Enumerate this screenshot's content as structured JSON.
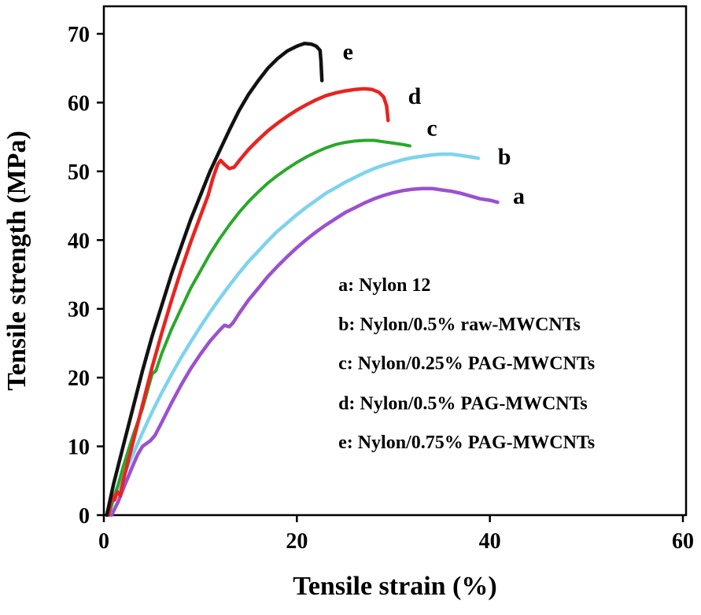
{
  "chart_data": {
    "type": "line",
    "title": "",
    "xlabel": "Tensile strain (%)",
    "ylabel": "Tensile strength (MPa)",
    "xlim": [
      0,
      60
    ],
    "ylim": [
      0,
      70
    ],
    "xticks": [
      0,
      20,
      40,
      60
    ],
    "yticks": [
      0,
      10,
      20,
      30,
      40,
      50,
      60,
      70
    ],
    "grid": false,
    "frame": true,
    "legend_position": "inside-lower-right",
    "legend_x": 24.3,
    "legend_y": [
      32.6,
      26.9,
      21.2,
      15.4,
      9.7
    ],
    "legend": [
      "a: Nylon 12",
      "b: Nylon/0.5% raw-MWCNTs",
      "c: Nylon/0.25% PAG-MWCNTs",
      "d: Nylon/0.5% PAG-MWCNTs",
      "e: Nylon/0.75% PAG-MWCNTs"
    ],
    "series": [
      {
        "name": "a",
        "description": "Nylon 12",
        "color": "#9b51d0",
        "stroke_width": 4.5,
        "label": "a",
        "label_pos": [
          43.0,
          45.3
        ],
        "points": [
          [
            0.8,
            0
          ],
          [
            1.5,
            2
          ],
          [
            2,
            3.8
          ],
          [
            2.5,
            5.5
          ],
          [
            3,
            7.2
          ],
          [
            3.5,
            8.8
          ],
          [
            4,
            10
          ],
          [
            4.4,
            10.4
          ],
          [
            4.8,
            10.8
          ],
          [
            5.3,
            11.6
          ],
          [
            6,
            13.5
          ],
          [
            7,
            16.3
          ],
          [
            8,
            18.9
          ],
          [
            9,
            21.3
          ],
          [
            10,
            23.4
          ],
          [
            11,
            25.3
          ],
          [
            12,
            26.9
          ],
          [
            12.5,
            27.6
          ],
          [
            13,
            27.4
          ],
          [
            13.4,
            28
          ],
          [
            14,
            29.3
          ],
          [
            15,
            31.3
          ],
          [
            16,
            33
          ],
          [
            17,
            34.7
          ],
          [
            18,
            36.2
          ],
          [
            19,
            37.6
          ],
          [
            20,
            38.9
          ],
          [
            21,
            40.1
          ],
          [
            22,
            41.2
          ],
          [
            23,
            42.2
          ],
          [
            24,
            43.1
          ],
          [
            25,
            44
          ],
          [
            26,
            44.7
          ],
          [
            27,
            45.4
          ],
          [
            28,
            46
          ],
          [
            29,
            46.5
          ],
          [
            30,
            46.9
          ],
          [
            31,
            47.2
          ],
          [
            32,
            47.4
          ],
          [
            33,
            47.5
          ],
          [
            34,
            47.5
          ],
          [
            35,
            47.3
          ],
          [
            36,
            47.1
          ],
          [
            37,
            46.8
          ],
          [
            38,
            46.4
          ],
          [
            39,
            46
          ],
          [
            40,
            45.8
          ],
          [
            40.8,
            45.5
          ]
        ]
      },
      {
        "name": "b",
        "description": "Nylon/0.5% raw-MWCNTs",
        "color": "#7ed3ef",
        "stroke_width": 4.5,
        "label": "b",
        "label_pos": [
          41.5,
          51.0
        ],
        "points": [
          [
            0.5,
            0
          ],
          [
            1,
            2.2
          ],
          [
            2,
            5.5
          ],
          [
            3,
            8.8
          ],
          [
            4,
            12
          ],
          [
            5,
            15
          ],
          [
            6,
            17.8
          ],
          [
            7,
            20.4
          ],
          [
            8,
            22.9
          ],
          [
            9,
            25.2
          ],
          [
            10,
            27.4
          ],
          [
            11,
            29.5
          ],
          [
            12,
            31.5
          ],
          [
            13,
            33.4
          ],
          [
            14,
            35.2
          ],
          [
            15,
            36.9
          ],
          [
            16,
            38.4
          ],
          [
            17,
            39.9
          ],
          [
            18,
            41.3
          ],
          [
            19,
            42.5
          ],
          [
            20,
            43.7
          ],
          [
            21,
            44.8
          ],
          [
            22,
            45.8
          ],
          [
            23,
            46.8
          ],
          [
            24,
            47.6
          ],
          [
            25,
            48.4
          ],
          [
            26,
            49.1
          ],
          [
            27,
            49.8
          ],
          [
            28,
            50.4
          ],
          [
            29,
            50.9
          ],
          [
            30,
            51.3
          ],
          [
            31,
            51.7
          ],
          [
            32,
            52
          ],
          [
            33,
            52.2
          ],
          [
            34,
            52.4
          ],
          [
            35,
            52.5
          ],
          [
            36,
            52.5
          ],
          [
            37,
            52.3
          ],
          [
            38,
            52.1
          ],
          [
            38.8,
            51.9
          ]
        ]
      },
      {
        "name": "c",
        "description": "Nylon/0.25% PAG-MWCNTs",
        "color": "#2aa82a",
        "stroke_width": 4,
        "label": "c",
        "label_pos": [
          34.0,
          55.2
        ],
        "points": [
          [
            0.5,
            0
          ],
          [
            1,
            2.5
          ],
          [
            1.5,
            4.5
          ],
          [
            2,
            7
          ],
          [
            3,
            11.5
          ],
          [
            4,
            15.5
          ],
          [
            4.6,
            18.5
          ],
          [
            5,
            20.5
          ],
          [
            5.4,
            21
          ],
          [
            6,
            23.5
          ],
          [
            7,
            27
          ],
          [
            8,
            30
          ],
          [
            9,
            33
          ],
          [
            10,
            35.5
          ],
          [
            11,
            38
          ],
          [
            12,
            40.2
          ],
          [
            13,
            42.2
          ],
          [
            14,
            44
          ],
          [
            15,
            45.6
          ],
          [
            16,
            47
          ],
          [
            17,
            48.3
          ],
          [
            18,
            49.4
          ],
          [
            19,
            50.4
          ],
          [
            20,
            51.3
          ],
          [
            21,
            52.1
          ],
          [
            22,
            52.8
          ],
          [
            23,
            53.4
          ],
          [
            24,
            53.9
          ],
          [
            25,
            54.2
          ],
          [
            26,
            54.4
          ],
          [
            27,
            54.5
          ],
          [
            28,
            54.5
          ],
          [
            29,
            54.3
          ],
          [
            30,
            54.1
          ],
          [
            31,
            53.9
          ],
          [
            31.7,
            53.7
          ]
        ]
      },
      {
        "name": "d",
        "description": "Nylon/0.5% PAG-MWCNTs",
        "color": "#e82420",
        "stroke_width": 4.5,
        "label": "d",
        "label_pos": [
          32.2,
          59.8
        ],
        "points": [
          [
            0.5,
            0
          ],
          [
            0.7,
            1.8
          ],
          [
            0.9,
            2.8
          ],
          [
            1.1,
            2.2
          ],
          [
            1.4,
            3.4
          ],
          [
            1.7,
            2.8
          ],
          [
            2,
            5
          ],
          [
            3,
            10.5
          ],
          [
            4,
            16
          ],
          [
            5,
            21.5
          ],
          [
            6,
            26.5
          ],
          [
            7,
            31.2
          ],
          [
            8,
            35.6
          ],
          [
            9,
            39.7
          ],
          [
            10,
            43.5
          ],
          [
            10.8,
            46.5
          ],
          [
            11.3,
            49
          ],
          [
            11.8,
            51
          ],
          [
            12.1,
            51.6
          ],
          [
            12.5,
            51
          ],
          [
            13,
            50.4
          ],
          [
            13.5,
            50.6
          ],
          [
            14,
            51.5
          ],
          [
            15,
            53.2
          ],
          [
            16,
            54.6
          ],
          [
            17,
            55.9
          ],
          [
            18,
            57
          ],
          [
            19,
            58
          ],
          [
            20,
            58.9
          ],
          [
            21,
            59.7
          ],
          [
            22,
            60.4
          ],
          [
            23,
            61
          ],
          [
            24,
            61.4
          ],
          [
            25,
            61.7
          ],
          [
            26,
            61.9
          ],
          [
            27,
            62
          ],
          [
            27.8,
            61.9
          ],
          [
            28.5,
            61.5
          ],
          [
            29,
            60.8
          ],
          [
            29.3,
            59.5
          ],
          [
            29.4,
            58.2
          ],
          [
            29.45,
            57.4
          ]
        ]
      },
      {
        "name": "e",
        "description": "Nylon/0.75% PAG-MWCNTs",
        "color": "#121212",
        "stroke_width": 4.5,
        "label": "e",
        "label_pos": [
          25.3,
          66.3
        ],
        "points": [
          [
            0.3,
            0
          ],
          [
            1,
            4.5
          ],
          [
            2,
            10
          ],
          [
            3,
            15.5
          ],
          [
            4,
            21
          ],
          [
            5,
            26
          ],
          [
            6,
            30.5
          ],
          [
            7,
            35
          ],
          [
            8,
            39
          ],
          [
            9,
            43
          ],
          [
            10,
            46.5
          ],
          [
            11,
            50
          ],
          [
            12,
            53
          ],
          [
            13,
            56
          ],
          [
            14,
            58.8
          ],
          [
            15,
            61.2
          ],
          [
            16,
            63.2
          ],
          [
            17,
            65
          ],
          [
            18,
            66.4
          ],
          [
            19,
            67.5
          ],
          [
            20,
            68.2
          ],
          [
            20.8,
            68.6
          ],
          [
            21.5,
            68.5
          ],
          [
            22,
            68.2
          ],
          [
            22.4,
            67.6
          ],
          [
            22.5,
            66
          ],
          [
            22.55,
            64.5
          ],
          [
            22.6,
            63.2
          ]
        ]
      }
    ]
  }
}
